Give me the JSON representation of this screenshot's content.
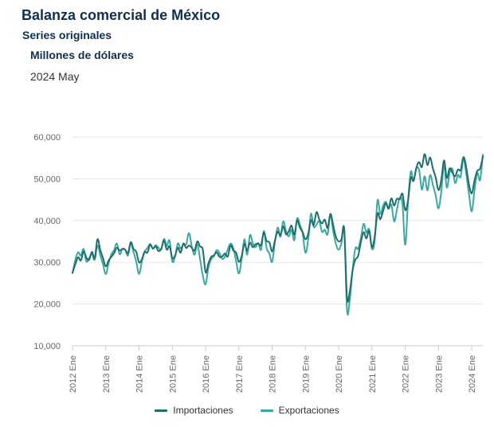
{
  "header": {
    "title": "Balanza comercial de México",
    "subtitle": "Series originales",
    "units": "Millones de dólares",
    "period": "2024 May"
  },
  "colors": {
    "importaciones": "#1f6e6b",
    "exportaciones": "#3aa9a0",
    "grid": "#e6e6e6",
    "axis": "#cccccc",
    "tick_text": "#666666"
  },
  "chart_data": {
    "type": "line",
    "title": "Balanza comercial de México",
    "ylim": [
      10000,
      60000
    ],
    "yticks": [
      10000,
      20000,
      30000,
      40000,
      50000,
      60000
    ],
    "ytick_labels": [
      "10,000",
      "20,000",
      "30,000",
      "40,000",
      "50,000",
      "60,000"
    ],
    "x_start": "2012-01",
    "x_end": "2024-05",
    "xtick_labels": [
      "2012 Ene",
      "2013 Ene",
      "2014 Ene",
      "2015 Ene",
      "2016 Ene",
      "2017 Ene",
      "2018 Ene",
      "2019 Ene",
      "2020 Ene",
      "2021 Ene",
      "2022 Ene",
      "2023 Ene",
      "2024 Ene"
    ],
    "grid": true,
    "legend_position": "bottom",
    "series": [
      {
        "name": "Importaciones",
        "x": [
          "2012-01",
          "2012-02",
          "2012-03",
          "2012-04",
          "2012-05",
          "2012-06",
          "2012-07",
          "2012-08",
          "2012-09",
          "2012-10",
          "2012-11",
          "2012-12",
          "2013-01",
          "2013-02",
          "2013-03",
          "2013-04",
          "2013-05",
          "2013-06",
          "2013-07",
          "2013-08",
          "2013-09",
          "2013-10",
          "2013-11",
          "2013-12",
          "2014-01",
          "2014-02",
          "2014-03",
          "2014-04",
          "2014-05",
          "2014-06",
          "2014-07",
          "2014-08",
          "2014-09",
          "2014-10",
          "2014-11",
          "2014-12",
          "2015-01",
          "2015-02",
          "2015-03",
          "2015-04",
          "2015-05",
          "2015-06",
          "2015-07",
          "2015-08",
          "2015-09",
          "2015-10",
          "2015-11",
          "2015-12",
          "2016-01",
          "2016-02",
          "2016-03",
          "2016-04",
          "2016-05",
          "2016-06",
          "2016-07",
          "2016-08",
          "2016-09",
          "2016-10",
          "2016-11",
          "2016-12",
          "2017-01",
          "2017-02",
          "2017-03",
          "2017-04",
          "2017-05",
          "2017-06",
          "2017-07",
          "2017-08",
          "2017-09",
          "2017-10",
          "2017-11",
          "2017-12",
          "2018-01",
          "2018-02",
          "2018-03",
          "2018-04",
          "2018-05",
          "2018-06",
          "2018-07",
          "2018-08",
          "2018-09",
          "2018-10",
          "2018-11",
          "2018-12",
          "2019-01",
          "2019-02",
          "2019-03",
          "2019-04",
          "2019-05",
          "2019-06",
          "2019-07",
          "2019-08",
          "2019-09",
          "2019-10",
          "2019-11",
          "2019-12",
          "2020-01",
          "2020-02",
          "2020-03",
          "2020-04",
          "2020-05",
          "2020-06",
          "2020-07",
          "2020-08",
          "2020-09",
          "2020-10",
          "2020-11",
          "2020-12",
          "2021-01",
          "2021-02",
          "2021-03",
          "2021-04",
          "2021-05",
          "2021-06",
          "2021-07",
          "2021-08",
          "2021-09",
          "2021-10",
          "2021-11",
          "2021-12",
          "2022-01",
          "2022-02",
          "2022-03",
          "2022-04",
          "2022-05",
          "2022-06",
          "2022-07",
          "2022-08",
          "2022-09",
          "2022-10",
          "2022-11",
          "2022-12",
          "2023-01",
          "2023-02",
          "2023-03",
          "2023-04",
          "2023-05",
          "2023-06",
          "2023-07",
          "2023-08",
          "2023-09",
          "2023-10",
          "2023-11",
          "2023-12",
          "2024-01",
          "2024-02",
          "2024-03",
          "2024-04",
          "2024-05"
        ],
        "values": [
          27500,
          29500,
          31200,
          30400,
          32600,
          31100,
          30600,
          32500,
          31000,
          35500,
          33000,
          31000,
          29000,
          30400,
          31300,
          32200,
          33500,
          32800,
          33200,
          33000,
          32200,
          34800,
          33200,
          32500,
          30000,
          30700,
          32500,
          32300,
          34200,
          33300,
          33800,
          32700,
          33200,
          35200,
          33000,
          33800,
          31000,
          31600,
          33500,
          32300,
          34500,
          33400,
          34000,
          33500,
          32800,
          35000,
          33800,
          33000,
          27600,
          29700,
          31300,
          31600,
          32400,
          31300,
          31400,
          32100,
          31400,
          34000,
          32800,
          32300,
          30100,
          31400,
          34400,
          32800,
          34700,
          33600,
          34300,
          34500,
          34100,
          37100,
          35100,
          34800,
          32600,
          35200,
          37300,
          36500,
          38600,
          36700,
          37400,
          38800,
          36600,
          40000,
          38300,
          37200,
          35500,
          36800,
          40100,
          38900,
          42000,
          40300,
          39300,
          40200,
          38200,
          41600,
          39000,
          36100,
          35000,
          35500,
          37900,
          21600,
          23000,
          28000,
          30600,
          31500,
          34800,
          37200,
          35700,
          37500,
          33600,
          36200,
          41700,
          40300,
          42200,
          44100,
          42900,
          45300,
          43600,
          45200,
          45100,
          46400,
          42500,
          44700,
          50200,
          49500,
          52600,
          54000,
          52800,
          55900,
          53300,
          55100,
          52400,
          50300,
          47300,
          49700,
          54400,
          50200,
          52500,
          51500,
          50600,
          52200,
          52100,
          55200,
          52800,
          48600,
          46500,
          49600,
          51900,
          52400,
          55300
        ]
      },
      {
        "name": "Exportaciones",
        "x": [
          "2012-01",
          "2012-02",
          "2012-03",
          "2012-04",
          "2012-05",
          "2012-06",
          "2012-07",
          "2012-08",
          "2012-09",
          "2012-10",
          "2012-11",
          "2012-12",
          "2013-01",
          "2013-02",
          "2013-03",
          "2013-04",
          "2013-05",
          "2013-06",
          "2013-07",
          "2013-08",
          "2013-09",
          "2013-10",
          "2013-11",
          "2013-12",
          "2014-01",
          "2014-02",
          "2014-03",
          "2014-04",
          "2014-05",
          "2014-06",
          "2014-07",
          "2014-08",
          "2014-09",
          "2014-10",
          "2014-11",
          "2014-12",
          "2015-01",
          "2015-02",
          "2015-03",
          "2015-04",
          "2015-05",
          "2015-06",
          "2015-07",
          "2015-08",
          "2015-09",
          "2015-10",
          "2015-11",
          "2015-12",
          "2016-01",
          "2016-02",
          "2016-03",
          "2016-04",
          "2016-05",
          "2016-06",
          "2016-07",
          "2016-08",
          "2016-09",
          "2016-10",
          "2016-11",
          "2016-12",
          "2017-01",
          "2017-02",
          "2017-03",
          "2017-04",
          "2017-05",
          "2017-06",
          "2017-07",
          "2017-08",
          "2017-09",
          "2017-10",
          "2017-11",
          "2017-12",
          "2018-01",
          "2018-02",
          "2018-03",
          "2018-04",
          "2018-05",
          "2018-06",
          "2018-07",
          "2018-08",
          "2018-09",
          "2018-10",
          "2018-11",
          "2018-12",
          "2019-01",
          "2019-02",
          "2019-03",
          "2019-04",
          "2019-05",
          "2019-06",
          "2019-07",
          "2019-08",
          "2019-09",
          "2019-10",
          "2019-11",
          "2019-12",
          "2020-01",
          "2020-02",
          "2020-03",
          "2020-04",
          "2020-05",
          "2020-06",
          "2020-07",
          "2020-08",
          "2020-09",
          "2020-10",
          "2020-11",
          "2020-12",
          "2021-01",
          "2021-02",
          "2021-03",
          "2021-04",
          "2021-05",
          "2021-06",
          "2021-07",
          "2021-08",
          "2021-09",
          "2021-10",
          "2021-11",
          "2021-12",
          "2022-01",
          "2022-02",
          "2022-03",
          "2022-04",
          "2022-05",
          "2022-06",
          "2022-07",
          "2022-08",
          "2022-09",
          "2022-10",
          "2022-11",
          "2022-12",
          "2023-01",
          "2023-02",
          "2023-03",
          "2023-04",
          "2023-05",
          "2023-06",
          "2023-07",
          "2023-08",
          "2023-09",
          "2023-10",
          "2023-11",
          "2023-12",
          "2024-01",
          "2024-02",
          "2024-03",
          "2024-04",
          "2024-05"
        ],
        "values": [
          27400,
          30500,
          32400,
          31600,
          33200,
          30200,
          31000,
          32000,
          30600,
          34000,
          31700,
          29500,
          27200,
          29700,
          31900,
          32900,
          34500,
          31900,
          33200,
          33000,
          31600,
          34500,
          32500,
          30100,
          27200,
          30100,
          32500,
          33400,
          34400,
          33200,
          34100,
          33500,
          33100,
          35600,
          33900,
          35200,
          30200,
          31400,
          34500,
          33300,
          34300,
          34300,
          37000,
          33900,
          31800,
          34300,
          30800,
          26800,
          24700,
          28700,
          30700,
          31500,
          32900,
          32200,
          30800,
          31400,
          33100,
          34500,
          33400,
          30300,
          27300,
          30700,
          35500,
          31800,
          36500,
          34600,
          33600,
          34600,
          33000,
          37500,
          33400,
          32100,
          30100,
          34800,
          38300,
          36100,
          39800,
          37500,
          36200,
          37800,
          35300,
          40500,
          39000,
          37000,
          32300,
          35400,
          41600,
          38500,
          39000,
          39800,
          37300,
          37800,
          36700,
          41300,
          37500,
          34400,
          33000,
          34600,
          37900,
          18600,
          20900,
          28000,
          33300,
          33200,
          35800,
          39200,
          37100,
          37900,
          33200,
          35300,
          44800,
          41600,
          43500,
          44500,
          42800,
          43800,
          39800,
          42600,
          45400,
          44000,
          34200,
          44300,
          51700,
          49400,
          52400,
          52100,
          47400,
          50600,
          47200,
          50900,
          48500,
          46000,
          42900,
          46900,
          53200,
          47900,
          51300,
          52400,
          49000,
          50900,
          50500,
          54800,
          51200,
          46300,
          42200,
          47300,
          51400,
          49700,
          55800
        ]
      }
    ]
  },
  "legend": {
    "items": [
      {
        "label": "Importaciones",
        "color": "#1f6e6b"
      },
      {
        "label": "Exportaciones",
        "color": "#3aa9a0"
      }
    ]
  }
}
